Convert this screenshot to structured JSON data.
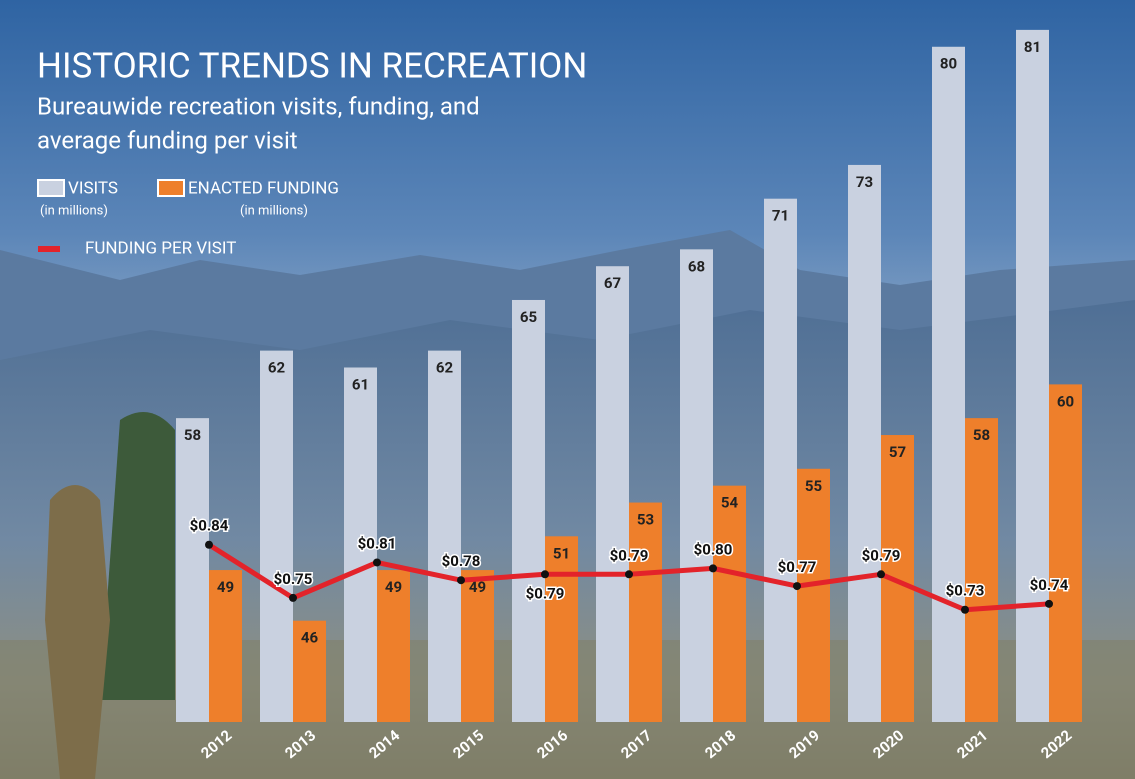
{
  "chart_data": {
    "type": "bar",
    "title": "HISTORIC TRENDS IN RECREATION",
    "subtitle": [
      "Bureauwide recreation visits, funding, and",
      "average funding per visit"
    ],
    "categories": [
      "2012",
      "2013",
      "2014",
      "2015",
      "2016",
      "2017",
      "2018",
      "2019",
      "2020",
      "2021",
      "2022"
    ],
    "series": [
      {
        "name": "VISITS",
        "note": "(in millions)",
        "color": "#c9d1e0",
        "values": [
          58,
          62,
          61,
          62,
          65,
          67,
          68,
          71,
          73,
          80,
          81
        ]
      },
      {
        "name": "ENACTED FUNDING",
        "note": "(in millions)",
        "color": "#ee7f2b",
        "values": [
          49,
          46,
          49,
          49,
          51,
          53,
          54,
          55,
          57,
          58,
          60
        ]
      },
      {
        "name": "FUNDING PER VISIT",
        "type": "line",
        "axis": "y2",
        "color": "#e3232a",
        "values": [
          0.84,
          0.75,
          0.81,
          0.78,
          0.79,
          0.79,
          0.8,
          0.77,
          0.79,
          0.73,
          0.74
        ],
        "value_labels": [
          "$0.84",
          "$0.75",
          "$0.81",
          "$0.78",
          "$0.79",
          "$0.79",
          "$0.80",
          "$0.77",
          "$0.79",
          "$0.73",
          "$0.74"
        ]
      }
    ],
    "ylim": [
      40,
      82
    ],
    "y2lim": [
      0.54,
      1.74
    ]
  }
}
